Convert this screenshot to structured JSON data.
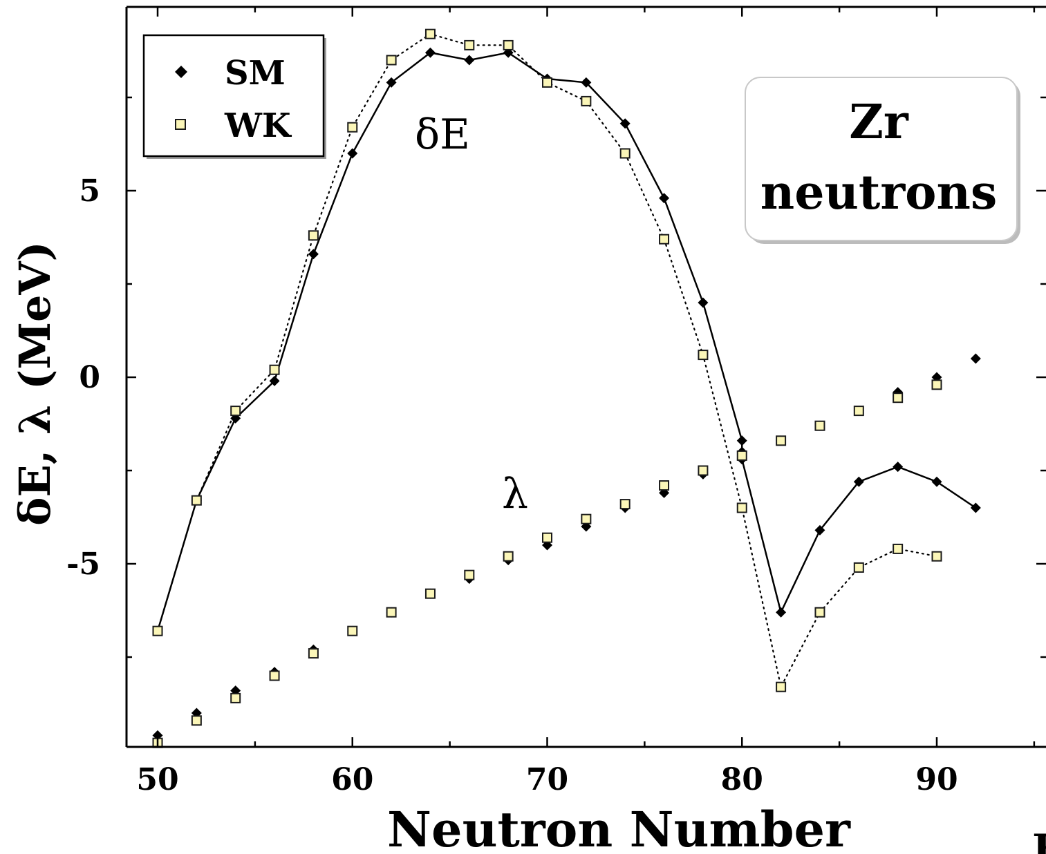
{
  "chart_data": {
    "type": "line",
    "xlabel": "Neutron Number",
    "ylabel": "δE, λ (MeV)",
    "xlim": [
      46.0,
      96.0
    ],
    "ylim": [
      -9.9,
      10.0
    ],
    "x_ticks": [
      50,
      60,
      70,
      80,
      90
    ],
    "y_ticks": [
      -5,
      0,
      5
    ],
    "grid": false,
    "legend_position": "top-left",
    "legend": [
      {
        "key": "SM",
        "label": "SM",
        "marker": "diamond"
      },
      {
        "key": "WK",
        "label": "WK",
        "marker": "square"
      }
    ],
    "label_box": {
      "line1": "Zr",
      "line2": "neutrons"
    },
    "annotations": {
      "delta_e": "δE",
      "lambda": "λ",
      "corner": "F"
    },
    "series": [
      {
        "name": "SM",
        "quantity": "δE",
        "connected": true,
        "line": "solid",
        "x": [
          50,
          52,
          54,
          56,
          58,
          60,
          62,
          64,
          66,
          68,
          70,
          72,
          74,
          76,
          78,
          80,
          80,
          82,
          84,
          86,
          88,
          90,
          92
        ],
        "y": [
          -6.8,
          -3.3,
          -1.1,
          -0.1,
          3.3,
          6.0,
          7.9,
          8.7,
          8.5,
          8.7,
          8.0,
          7.9,
          6.8,
          4.8,
          2.0,
          -1.7,
          -2.2,
          -6.3,
          -4.1,
          -2.8,
          -2.4,
          -2.8,
          -3.5
        ]
      },
      {
        "name": "WK",
        "quantity": "δE",
        "connected": true,
        "line": "dotted",
        "x": [
          50,
          52,
          54,
          56,
          58,
          60,
          62,
          64,
          66,
          68,
          70,
          72,
          74,
          76,
          78,
          80,
          82,
          84,
          86,
          88,
          90
        ],
        "y": [
          -6.8,
          -3.3,
          -0.9,
          0.2,
          3.8,
          6.7,
          8.5,
          9.2,
          8.9,
          8.9,
          7.9,
          7.4,
          6.0,
          3.7,
          0.6,
          -3.5,
          -8.3,
          -6.3,
          -5.1,
          -4.6,
          -4.8
        ]
      },
      {
        "name": "SM",
        "quantity": "λ",
        "connected": false,
        "x": [
          50,
          52,
          54,
          56,
          58,
          60,
          62,
          64,
          66,
          68,
          70,
          72,
          74,
          76,
          78,
          80,
          82,
          84,
          86,
          88,
          90,
          92
        ],
        "y": [
          -9.6,
          -9.0,
          -8.4,
          -7.9,
          -7.3,
          -6.8,
          -6.3,
          -5.8,
          -5.4,
          -4.9,
          -4.5,
          -4.0,
          -3.5,
          -3.1,
          -2.6,
          -2.0,
          -1.7,
          -1.3,
          -0.9,
          -0.4,
          0.0,
          0.5
        ]
      },
      {
        "name": "WK",
        "quantity": "λ",
        "connected": false,
        "x": [
          50,
          52,
          54,
          56,
          58,
          60,
          62,
          64,
          66,
          68,
          70,
          72,
          74,
          76,
          78,
          80,
          82,
          84,
          86,
          88,
          90
        ],
        "y": [
          -9.8,
          -9.2,
          -8.6,
          -8.0,
          -7.4,
          -6.8,
          -6.3,
          -5.8,
          -5.3,
          -4.8,
          -4.3,
          -3.8,
          -3.4,
          -2.9,
          -2.5,
          -2.1,
          -1.7,
          -1.3,
          -0.9,
          -0.55,
          -0.2
        ]
      }
    ]
  },
  "colors": {
    "sm_marker": "#000000",
    "wk_fill": "#fbf6b8",
    "wk_stroke": "#1a1a1a",
    "axis": "#000000",
    "label_box_border": "#c8c8c8",
    "label_box_shadow": "#bcbcbc"
  }
}
